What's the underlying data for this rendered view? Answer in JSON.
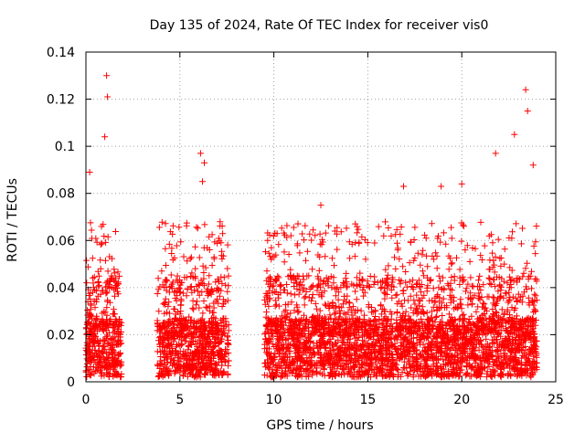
{
  "chart_data": {
    "type": "scatter",
    "title": "Day 135 of 2024, Rate Of TEC Index for receiver vis0",
    "xlabel": "GPS time / hours",
    "ylabel": "ROTI / TECUs",
    "xlim": [
      0,
      25
    ],
    "ylim": [
      0,
      0.14
    ],
    "x_ticks": [
      0,
      5,
      10,
      15,
      20,
      25
    ],
    "x_tick_labels": [
      "0",
      "5",
      "10",
      "15",
      "20",
      "25"
    ],
    "y_ticks": [
      0,
      0.02,
      0.04,
      0.06,
      0.08,
      0.1,
      0.12,
      0.14
    ],
    "y_tick_labels": [
      "0",
      "0.02",
      "0.04",
      "0.06",
      "0.08",
      "0.1",
      "0.12",
      "0.14"
    ],
    "grid": true,
    "marker": "+",
    "color": "#ff0000",
    "series": [
      {
        "name": "ROTI",
        "segments": [
          {
            "start": 0.0,
            "end": 1.9,
            "peak": 0.13
          },
          {
            "start": 3.8,
            "end": 7.6,
            "peak": 0.097
          },
          {
            "start": 9.5,
            "end": 24.0,
            "peak": 0.124
          }
        ],
        "notable_points": [
          {
            "x": 1.1,
            "y": 0.13
          },
          {
            "x": 1.15,
            "y": 0.121
          },
          {
            "x": 1.0,
            "y": 0.104
          },
          {
            "x": 0.2,
            "y": 0.089
          },
          {
            "x": 6.1,
            "y": 0.097
          },
          {
            "x": 6.3,
            "y": 0.093
          },
          {
            "x": 6.2,
            "y": 0.085
          },
          {
            "x": 12.5,
            "y": 0.075
          },
          {
            "x": 16.9,
            "y": 0.083
          },
          {
            "x": 18.9,
            "y": 0.083
          },
          {
            "x": 20.0,
            "y": 0.084
          },
          {
            "x": 21.8,
            "y": 0.097
          },
          {
            "x": 22.8,
            "y": 0.105
          },
          {
            "x": 23.4,
            "y": 0.124
          },
          {
            "x": 23.5,
            "y": 0.115
          },
          {
            "x": 23.8,
            "y": 0.092
          }
        ]
      }
    ]
  }
}
